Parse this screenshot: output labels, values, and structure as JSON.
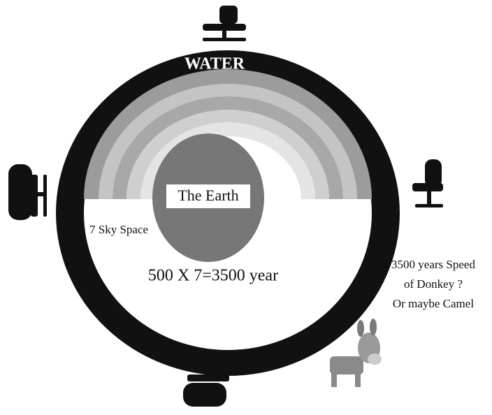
{
  "diagram": {
    "ring_label": "WATER",
    "center_label": "The Earth",
    "sky_label": "7 Sky Space",
    "calculation": "500 X 7=3500 year",
    "note": [
      "3500 years Speed",
      "of Donkey ?",
      "Or maybe Camel"
    ]
  }
}
